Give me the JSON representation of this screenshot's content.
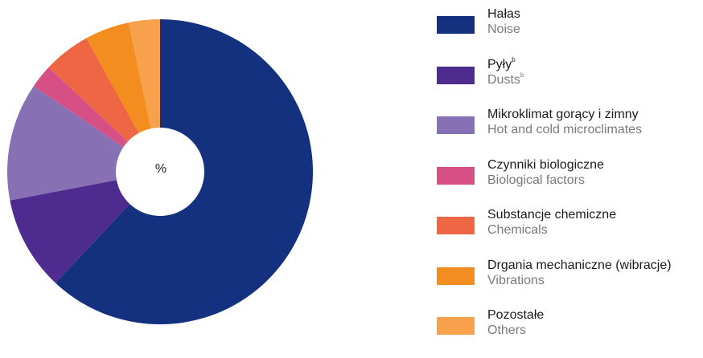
{
  "chart_data": {
    "type": "pie",
    "center_label": "%",
    "slices": [
      {
        "pl": "Hałas",
        "en": "Noise",
        "value": 62.0,
        "color": "#13317f"
      },
      {
        "pl": "Pyły",
        "en": "Dusts",
        "sup": "b",
        "value": 10.0,
        "color": "#4e2c8f"
      },
      {
        "pl": "Mikroklimat gorący i zimny",
        "en": "Hot and cold microclimates",
        "value": 12.5,
        "color": "#8771b4"
      },
      {
        "pl": "Czynniki biologiczne",
        "en": "Biological factors",
        "value": 2.5,
        "color": "#d64f85"
      },
      {
        "pl": "Substancje chemiczne",
        "en": "Chemicals",
        "value": 5.0,
        "color": "#ee6643"
      },
      {
        "pl": "Drgania mechaniczne (wibracje)",
        "en": "Vibrations",
        "value": 4.7,
        "color": "#f48d20"
      },
      {
        "pl": "Pozostałe",
        "en": "Others",
        "value": 3.3,
        "color": "#f7a14c"
      }
    ],
    "legend_position": "right"
  }
}
